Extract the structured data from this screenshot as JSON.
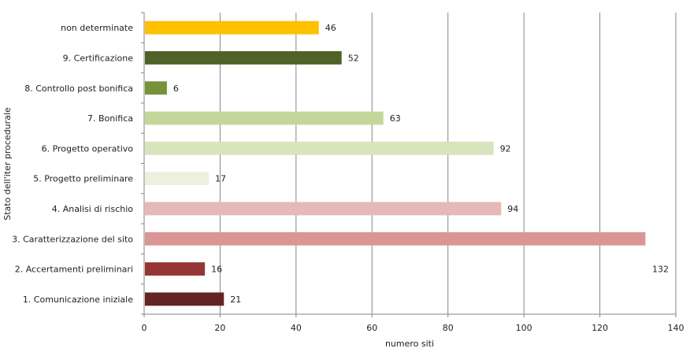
{
  "chart_data": {
    "type": "bar",
    "orientation": "horizontal",
    "title": "",
    "xlabel": "numero siti",
    "ylabel": "Stato dell'iter procedurale",
    "xlim": [
      0,
      140
    ],
    "xticks": [
      "0",
      "20",
      "40",
      "60",
      "80",
      "100",
      "120",
      "140"
    ],
    "grid": "vertical",
    "legend": "none",
    "categories": [
      "non determinate",
      "9. Certificazione",
      "8. Controllo post bonifica",
      "7. Bonifica",
      "6. Progetto operativo",
      "5. Progetto preliminare",
      "4. Analisi di rischio",
      "3. Caratterizzazione  del sito",
      "2. Accertamenti preliminari",
      "1. Comunicazione iniziale"
    ],
    "values": [
      46,
      52,
      6,
      63,
      92,
      17,
      94,
      132,
      16,
      21
    ],
    "value_labels": [
      "46",
      "52",
      "6",
      "63",
      "92",
      "17",
      "94",
      "132",
      "16",
      "21"
    ],
    "colors": [
      "#ffc000",
      "#4f6228",
      "#76933c",
      "#c4d79b",
      "#d8e4bc",
      "#ebf1de",
      "#e6b8b7",
      "#da9694",
      "#963634",
      "#632523"
    ]
  }
}
